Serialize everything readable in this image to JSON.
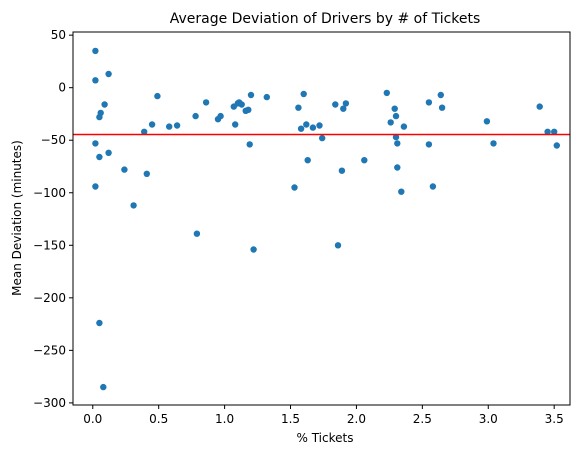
{
  "chart_data": {
    "type": "scatter",
    "title": "Average Deviation of Drivers by # of Tickets",
    "xlabel": "% Tickets",
    "ylabel": "Mean Deviation (minutes)",
    "xlim": [
      -0.15,
      3.62
    ],
    "ylim": [
      -302,
      53
    ],
    "xticks": [
      0.0,
      0.5,
      1.0,
      1.5,
      2.0,
      2.5,
      3.0,
      3.5
    ],
    "xtick_labels": [
      "0.0",
      "0.5",
      "1.0",
      "1.5",
      "2.0",
      "2.5",
      "3.0",
      "3.5"
    ],
    "yticks": [
      -300,
      -250,
      -200,
      -150,
      -100,
      -50,
      0,
      50
    ],
    "ytick_labels": [
      "−300",
      "−250",
      "−200",
      "−150",
      "−100",
      "−50",
      "0",
      "50"
    ],
    "point_color": "#1f77b4",
    "reference_line": {
      "y": -44.5,
      "color": "#ff0000"
    },
    "grid": false,
    "points": [
      {
        "x": 0.02,
        "y": 35
      },
      {
        "x": 0.02,
        "y": 7
      },
      {
        "x": 0.02,
        "y": -53
      },
      {
        "x": 0.02,
        "y": -94
      },
      {
        "x": 0.05,
        "y": -28
      },
      {
        "x": 0.06,
        "y": -24
      },
      {
        "x": 0.05,
        "y": -66
      },
      {
        "x": 0.05,
        "y": -224
      },
      {
        "x": 0.08,
        "y": -285
      },
      {
        "x": 0.09,
        "y": -16
      },
      {
        "x": 0.12,
        "y": 13
      },
      {
        "x": 0.12,
        "y": -62
      },
      {
        "x": 0.24,
        "y": -78
      },
      {
        "x": 0.31,
        "y": -112
      },
      {
        "x": 0.39,
        "y": -42
      },
      {
        "x": 0.41,
        "y": -82
      },
      {
        "x": 0.45,
        "y": -35
      },
      {
        "x": 0.49,
        "y": -8
      },
      {
        "x": 0.58,
        "y": -37
      },
      {
        "x": 0.64,
        "y": -36
      },
      {
        "x": 0.78,
        "y": -27
      },
      {
        "x": 0.79,
        "y": -139
      },
      {
        "x": 0.86,
        "y": -14
      },
      {
        "x": 0.95,
        "y": -30
      },
      {
        "x": 0.97,
        "y": -27
      },
      {
        "x": 1.07,
        "y": -18
      },
      {
        "x": 1.08,
        "y": -35
      },
      {
        "x": 1.1,
        "y": -15
      },
      {
        "x": 1.11,
        "y": -14
      },
      {
        "x": 1.13,
        "y": -16
      },
      {
        "x": 1.16,
        "y": -22
      },
      {
        "x": 1.18,
        "y": -21
      },
      {
        "x": 1.19,
        "y": -54
      },
      {
        "x": 1.2,
        "y": -7
      },
      {
        "x": 1.22,
        "y": -154
      },
      {
        "x": 1.32,
        "y": -9
      },
      {
        "x": 1.53,
        "y": -95
      },
      {
        "x": 1.56,
        "y": -19
      },
      {
        "x": 1.58,
        "y": -39
      },
      {
        "x": 1.6,
        "y": -6
      },
      {
        "x": 1.62,
        "y": -35
      },
      {
        "x": 1.63,
        "y": -69
      },
      {
        "x": 1.67,
        "y": -38
      },
      {
        "x": 1.72,
        "y": -36
      },
      {
        "x": 1.74,
        "y": -48
      },
      {
        "x": 1.84,
        "y": -16
      },
      {
        "x": 1.86,
        "y": -150
      },
      {
        "x": 1.89,
        "y": -79
      },
      {
        "x": 1.9,
        "y": -20
      },
      {
        "x": 1.92,
        "y": -15
      },
      {
        "x": 2.06,
        "y": -69
      },
      {
        "x": 2.23,
        "y": -5
      },
      {
        "x": 2.26,
        "y": -33
      },
      {
        "x": 2.29,
        "y": -20
      },
      {
        "x": 2.3,
        "y": -27
      },
      {
        "x": 2.3,
        "y": -47
      },
      {
        "x": 2.31,
        "y": -53
      },
      {
        "x": 2.31,
        "y": -76
      },
      {
        "x": 2.34,
        "y": -99
      },
      {
        "x": 2.36,
        "y": -37
      },
      {
        "x": 2.55,
        "y": -14
      },
      {
        "x": 2.55,
        "y": -54
      },
      {
        "x": 2.58,
        "y": -94
      },
      {
        "x": 2.64,
        "y": -7
      },
      {
        "x": 2.65,
        "y": -19
      },
      {
        "x": 2.99,
        "y": -32
      },
      {
        "x": 3.04,
        "y": -53
      },
      {
        "x": 3.39,
        "y": -18
      },
      {
        "x": 3.45,
        "y": -42
      },
      {
        "x": 3.5,
        "y": -42
      },
      {
        "x": 3.52,
        "y": -55
      }
    ]
  }
}
